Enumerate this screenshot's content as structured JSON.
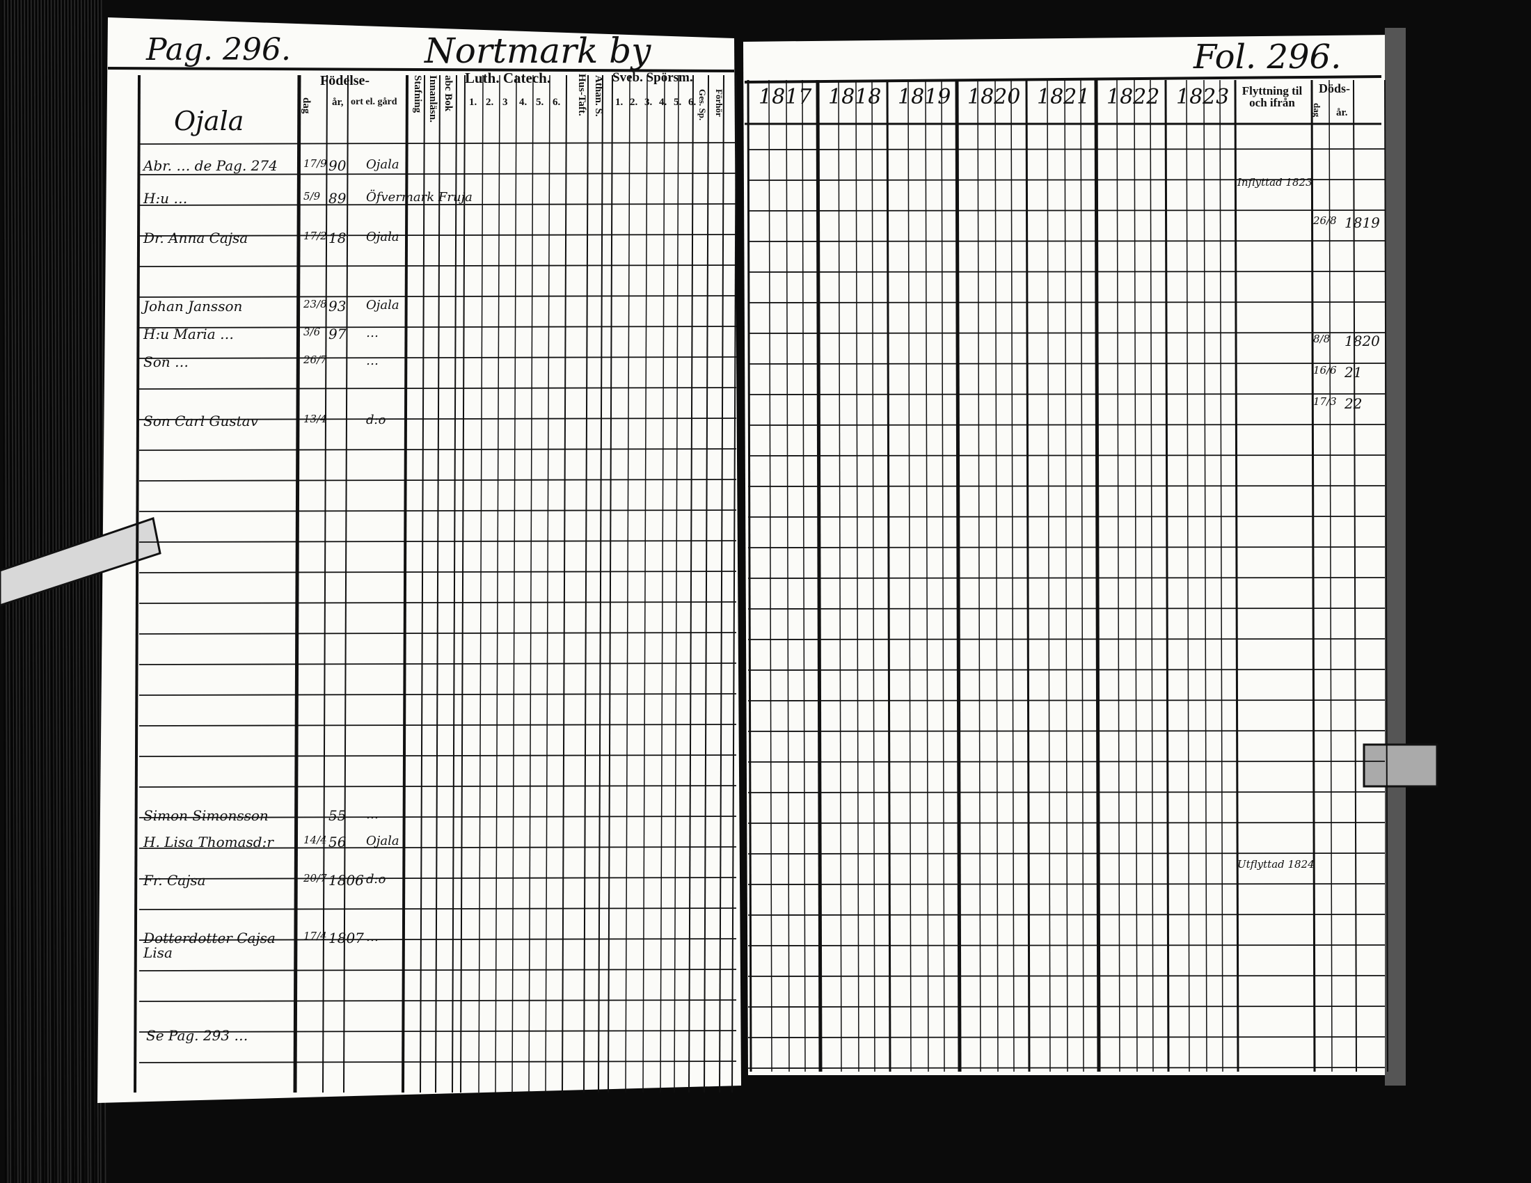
{
  "left_page": {
    "page_label": "Pag. 296.",
    "village": "Nortmark by",
    "farm": "Ojala",
    "headers": {
      "fodelse": "Födelse-",
      "dag": "dag",
      "ar": "år,",
      "ort": "ort el. gård",
      "stafning": "Stafning",
      "innanlasn": "Innanläsn.",
      "abc_bok": "abc Bok",
      "luth_catech": "Luth. Catech.",
      "catech_cols": [
        "1.",
        "2.",
        "3",
        "4.",
        "5.",
        "6."
      ],
      "hus_taft": "Hus-Taft.",
      "athan": "Athan. S.",
      "sveb_sporsm": "Sveb. Spörsm.",
      "sveb_cols": [
        "1.",
        "2.",
        "3.",
        "4.",
        "5.",
        "6."
      ],
      "ges_sp": "Ges. Sp.",
      "forhor": "Förhör"
    },
    "entries": [
      {
        "name": "Abr. … de Pag. 274",
        "dag": "17/9",
        "ar": "90",
        "ort": "Ojala"
      },
      {
        "name": "H:u …",
        "dag": "5/9",
        "ar": "89",
        "ort": "Öfvermark Fruja"
      },
      {
        "name": "Dr. Anna Cajsa",
        "dag": "17/2",
        "ar": "18",
        "ort": "Ojala"
      },
      {
        "name": "Johan Jansson",
        "dag": "23/8",
        "ar": "93",
        "ort": "Ojala"
      },
      {
        "name": "H:u Maria …",
        "dag": "3/6",
        "ar": "97",
        "ort": "…"
      },
      {
        "name": "Son …",
        "dag": "26/7",
        "ar": "",
        "ort": "…"
      },
      {
        "name": "Son Carl Gustav",
        "dag": "13/4",
        "ar": "",
        "ort": "d:o"
      },
      {
        "name": "Simon Simonsson",
        "dag": "",
        "ar": "55",
        "ort": "…"
      },
      {
        "name": "H. Lisa Thomasd:r",
        "dag": "14/4",
        "ar": "56",
        "ort": "Ojala"
      },
      {
        "name": "Fr. Cajsa",
        "dag": "20/7",
        "ar": "1806",
        "ort": "d:o"
      },
      {
        "name": "Dotterdotter Cajsa Lisa",
        "dag": "17/4",
        "ar": "1807",
        "ort": "…"
      }
    ],
    "footer_note": "Se Pag. 293 …"
  },
  "right_page": {
    "folio": "Fol. 296.",
    "years": [
      "1817",
      "1818",
      "1819",
      "1820",
      "1821",
      "1822",
      "1823"
    ],
    "flyttning": "Flyttning til och ifrån",
    "dods": "Döds-",
    "dods_dag": "dag",
    "dods_ar": "år.",
    "notes": [
      {
        "text": "Inflyttad 1823"
      },
      {
        "text": "Utflyttad 1824"
      }
    ],
    "deaths": [
      {
        "dag": "26/8",
        "ar": "1819"
      },
      {
        "dag": "8/8",
        "ar": "1820"
      },
      {
        "dag": "16/6",
        "ar": "21"
      },
      {
        "dag": "17/3",
        "ar": "22"
      }
    ]
  },
  "colors": {
    "paper": "#fbfbf8",
    "ink": "#111111",
    "background": "#0b0b0b"
  }
}
